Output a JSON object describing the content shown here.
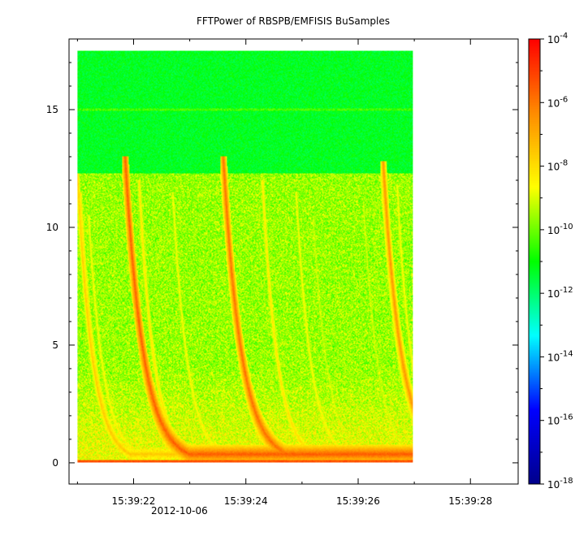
{
  "chart_data": {
    "type": "heatmap",
    "title": "FFTPower of RBSPB/EMFISIS  BuSamples",
    "xlabel": "",
    "ylabel": "",
    "x_tick_labels": [
      "15:39:22",
      "15:39:24",
      "15:39:26",
      "15:39:28"
    ],
    "x_tick_values": [
      22,
      24,
      26,
      28
    ],
    "x_date_label": "2012-10-06",
    "xlim": [
      20.85,
      28.85
    ],
    "data_xrange": [
      21.0,
      26.98
    ],
    "y_ticks": [
      0,
      5,
      10,
      15
    ],
    "ylim": [
      -0.9,
      18.0
    ],
    "data_yrange": [
      0.0,
      17.5
    ],
    "colorbar": {
      "scale": "log",
      "range": [
        1e-18,
        0.0001
      ],
      "tick_exponents": [
        -4,
        -6,
        -8,
        -10,
        -12,
        -14,
        -16,
        -18
      ],
      "tick_base": "10",
      "colormap": [
        "#00008b",
        "#0000ff",
        "#00ffff",
        "#00ff00",
        "#ffff00",
        "#ff8c00",
        "#ff0000"
      ]
    },
    "background_level_exp": -11,
    "cutoff_frequency": 12.3,
    "line_frequency": 15.0,
    "chorus_elements": [
      {
        "start_time": 21.0,
        "start_freq": 12.3,
        "strength_exp": -7.5
      },
      {
        "start_time": 21.05,
        "start_freq": 11.5,
        "strength_exp": -8.0
      },
      {
        "start_time": 21.2,
        "start_freq": 10.5,
        "strength_exp": -8.5
      },
      {
        "start_time": 21.85,
        "start_freq": 13.0,
        "strength_exp": -5.5
      },
      {
        "start_time": 22.1,
        "start_freq": 12.0,
        "strength_exp": -8.0
      },
      {
        "start_time": 22.7,
        "start_freq": 11.5,
        "strength_exp": -8.5
      },
      {
        "start_time": 23.6,
        "start_freq": 13.0,
        "strength_exp": -5.8
      },
      {
        "start_time": 24.3,
        "start_freq": 12.0,
        "strength_exp": -8.0
      },
      {
        "start_time": 24.9,
        "start_freq": 11.5,
        "strength_exp": -8.5
      },
      {
        "start_time": 25.2,
        "start_freq": 10.5,
        "strength_exp": -9.0
      },
      {
        "start_time": 26.1,
        "start_freq": 11.0,
        "strength_exp": -9.0
      },
      {
        "start_time": 26.45,
        "start_freq": 12.8,
        "strength_exp": -6.5
      },
      {
        "start_time": 26.7,
        "start_freq": 11.8,
        "strength_exp": -8.5
      }
    ]
  }
}
